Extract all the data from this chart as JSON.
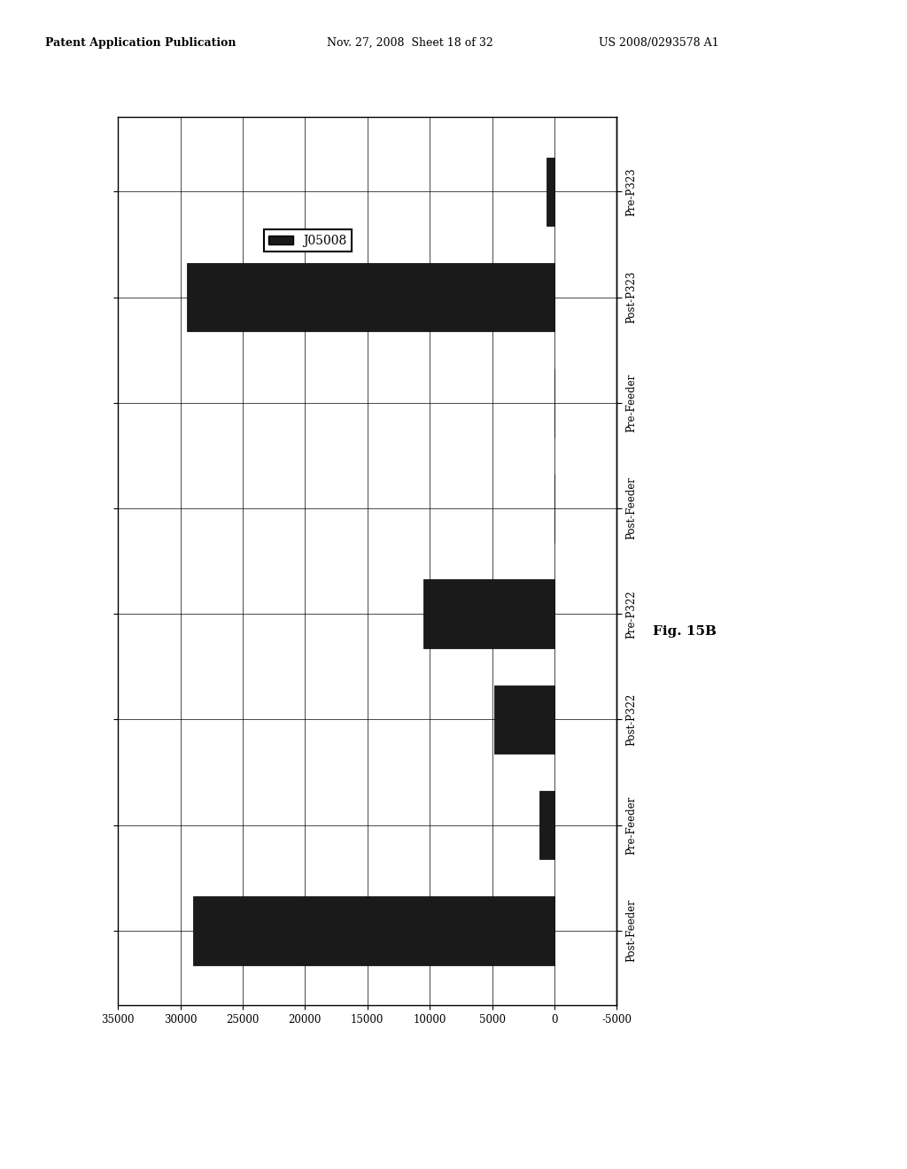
{
  "categories": [
    "Post-Feeder",
    "Pre-Feeder",
    "Post-P322",
    "Pre-P322",
    "Post-Feeder",
    "Pre-Feeder",
    "Post-P323",
    "Pre-P323"
  ],
  "values": [
    29000,
    1200,
    4800,
    10500,
    0,
    0,
    29500,
    600
  ],
  "bar_color": "#1a1a1a",
  "xlim": [
    35000,
    -5000
  ],
  "xticks": [
    35000,
    30000,
    25000,
    20000,
    15000,
    10000,
    5000,
    0,
    -5000
  ],
  "xtick_labels": [
    "35000",
    "30000",
    "25000",
    "20000",
    "15000",
    "10000",
    "5000",
    "0",
    "-5000"
  ],
  "legend_label": "J05008",
  "legend_box_color": "#1a1a1a",
  "fig_title": "Fig. 15B",
  "background_color": "#ffffff",
  "header1": "Patent Application Publication",
  "header2": "Nov. 27, 2008  Sheet 18 of 32",
  "header3": "US 2008/0293578 A1"
}
